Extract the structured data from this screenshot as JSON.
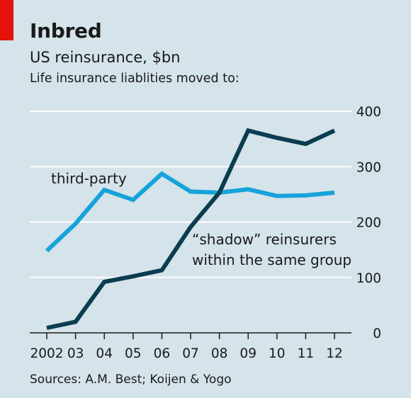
{
  "chart_data": {
    "type": "line",
    "title": "Inbred",
    "subtitle": "US reinsurance, $bn",
    "subtitle2": "Life insurance liablities moved to:",
    "source": "Sources: A.M. Best; Koijen & Yogo",
    "x": [
      2002,
      2003,
      2004,
      2005,
      2006,
      2007,
      2008,
      2009,
      2010,
      2011,
      2012
    ],
    "x_tick_labels": [
      "2002",
      "03",
      "04",
      "05",
      "06",
      "07",
      "08",
      "09",
      "10",
      "11",
      "12"
    ],
    "ylim": [
      0,
      400
    ],
    "y_ticks": [
      0,
      100,
      200,
      300,
      400
    ],
    "y_tick_labels": [
      "0",
      "100",
      "200",
      "300",
      "400"
    ],
    "y_axis_side": "right",
    "grid": true,
    "series": [
      {
        "name": "third-party",
        "color": "#16a3d9",
        "values": [
          148,
          197,
          258,
          240,
          287,
          255,
          253,
          259,
          247,
          248,
          253
        ]
      },
      {
        "name": "“shadow” reinsurers within the same group",
        "label_lines": [
          "“shadow” reinsurers",
          "within the same group"
        ],
        "color": "#0b3d51",
        "values": [
          9,
          20,
          92,
          102,
          113,
          191,
          253,
          365,
          352,
          341,
          365
        ]
      }
    ]
  },
  "colors": {
    "background": "#d5e3ea",
    "accent_red": "#e3120b",
    "grid": "#ffffff"
  }
}
